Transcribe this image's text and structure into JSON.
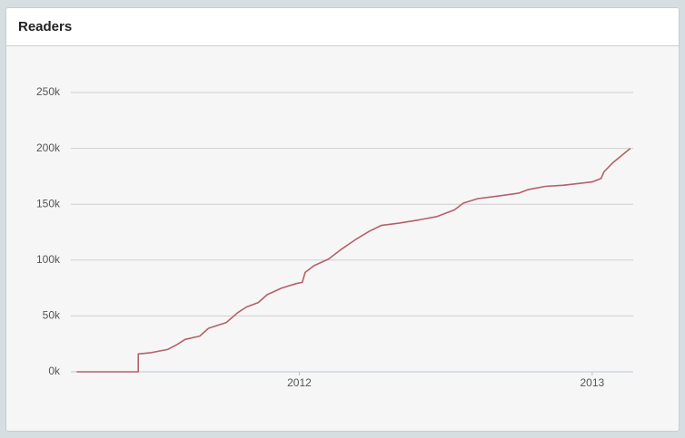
{
  "chart_data": {
    "type": "line",
    "title": "Readers",
    "x": [
      2011.24,
      2011.45,
      2011.45,
      2011.49,
      2011.55,
      2011.58,
      2011.61,
      2011.66,
      2011.69,
      2011.75,
      2011.79,
      2011.82,
      2011.86,
      2011.89,
      2011.94,
      2011.99,
      2012.01,
      2012.02,
      2012.05,
      2012.1,
      2012.14,
      2012.19,
      2012.24,
      2012.28,
      2012.34,
      2012.41,
      2012.47,
      2012.53,
      2012.56,
      2012.61,
      2012.67,
      2012.75,
      2012.78,
      2012.84,
      2012.9,
      2013.0,
      2013.03,
      2013.04,
      2013.07,
      2013.13
    ],
    "series": [
      {
        "name": "Readers",
        "color": "#b5606a",
        "values": [
          0,
          0,
          16000,
          17000,
          20000,
          24000,
          29000,
          32000,
          39000,
          44000,
          53000,
          58000,
          62000,
          69000,
          75000,
          79000,
          80000,
          89000,
          95000,
          101000,
          109000,
          118000,
          126000,
          131000,
          133000,
          136000,
          139000,
          145000,
          151000,
          155000,
          157000,
          160000,
          163000,
          166000,
          167000,
          170000,
          173000,
          179000,
          187000,
          200000
        ]
      }
    ],
    "xlim": [
      2011.22,
      2013.14
    ],
    "xticks": [
      2012,
      2013
    ],
    "ylim": [
      0,
      250000
    ],
    "yticks": [
      {
        "value": 0,
        "label": "0k"
      },
      {
        "value": 50000,
        "label": "50k"
      },
      {
        "value": 100000,
        "label": "100k"
      },
      {
        "value": 150000,
        "label": "150k"
      },
      {
        "value": 200000,
        "label": "200k"
      },
      {
        "value": 250000,
        "label": "250k"
      }
    ],
    "grid": true
  }
}
